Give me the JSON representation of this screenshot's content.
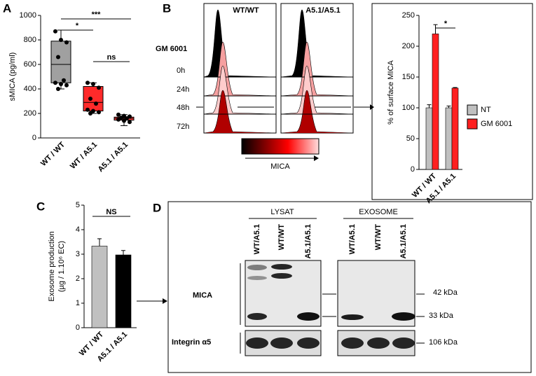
{
  "chart_data": [
    {
      "type": "box",
      "panel": "A",
      "ylabel": "sMICA (pg/ml)",
      "categories": [
        "WT / WT",
        "WT / A5.1",
        "A5.1 / A5.1"
      ],
      "boxes": [
        {
          "min": 400,
          "q1": 450,
          "median": 600,
          "q3": 790,
          "max": 880
        },
        {
          "min": 200,
          "q1": 220,
          "median": 290,
          "q3": 420,
          "max": 450
        },
        {
          "min": 100,
          "q1": 145,
          "median": 160,
          "q3": 170,
          "max": 190
        }
      ],
      "colors": [
        "#a0a0a0",
        "#ff2a2a",
        "#ff4040"
      ],
      "points": [
        [
          870,
          800,
          780,
          660,
          470,
          450,
          440,
          430,
          400
        ],
        [
          450,
          440,
          410,
          320,
          280,
          230,
          220,
          210,
          200
        ],
        [
          190,
          180,
          175,
          165,
          160,
          150,
          140,
          130
        ]
      ],
      "annotations": [
        "*",
        "***",
        "ns"
      ],
      "ylim": [
        0,
        1000
      ],
      "yticks": [
        0,
        200,
        400,
        600,
        800,
        1000
      ]
    },
    {
      "type": "bar",
      "panel": "B",
      "ylabel": "% of surface MICA",
      "categories": [
        "WT / WT",
        "A5.1 / A5.1"
      ],
      "series": [
        {
          "name": "NT",
          "color": "#c0c0c0",
          "values": [
            100,
            100
          ],
          "errors": [
            5,
            3
          ]
        },
        {
          "name": "GM 6001",
          "color": "#ff2020",
          "values": [
            220,
            132
          ],
          "errors": [
            15,
            1
          ]
        }
      ],
      "annotations": [
        "*"
      ],
      "legend": "right",
      "ylim": [
        0,
        250
      ],
      "yticks": [
        0,
        50,
        100,
        150,
        200,
        250
      ]
    },
    {
      "type": "bar",
      "panel": "C",
      "ylabel": "Exosome production",
      "ylabel2": "(µg / 1.10⁶ EC)",
      "categories": [
        "WT / WT",
        "A5.1 / A5.1"
      ],
      "series": [
        {
          "name": null,
          "colors": [
            "#c0c0c0",
            "#000000"
          ],
          "values": [
            3.33,
            2.97
          ],
          "errors": [
            0.3,
            0.18
          ]
        }
      ],
      "annotations": [
        "NS"
      ],
      "ylim": [
        0,
        5
      ],
      "yticks": [
        0,
        1,
        2,
        3,
        4,
        5
      ]
    }
  ],
  "histograms": {
    "panel": "B",
    "titles": [
      "WT/WT",
      "A5.1/A5.1"
    ],
    "treatment": "GM 6001",
    "rows": [
      "0h",
      "24h",
      "48h",
      "72h"
    ],
    "scale_label": "MICA"
  },
  "blot": {
    "panel": "D",
    "groups": [
      "LYSAT",
      "EXOSOME"
    ],
    "lanes": [
      "WT/A5.1",
      "WT/WT",
      "A5.1/A5.1",
      "WT/A5.1",
      "WT/WT",
      "A5.1/A5.1"
    ],
    "proteins": [
      "MICA",
      "Integrin α5"
    ],
    "markers": [
      "42 kDa",
      "33 kDa",
      "106 kDa"
    ]
  }
}
